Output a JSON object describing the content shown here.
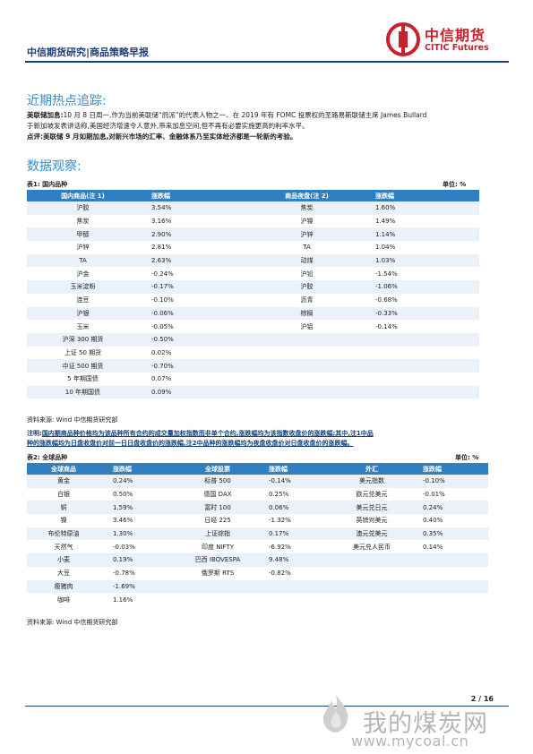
{
  "header": {
    "title": "中信期货研究|商品策略早报",
    "brand_cn": "中信期货",
    "brand_en": "CITIC Futures"
  },
  "section1": {
    "title": "近期热点追踪:",
    "news_label": "美联储加息:",
    "news_text": "10 月 8 日周一,作为当前美联储“鸽派”的代表人物之一、在 2019 年有 FOMC 投票权的圣路易斯联储主席 James Bullard",
    "news_text2": "于新加坡发表讲话称,美国经济增速令人意外,带来加息空间,但不再有必要实施更高的利率水平。",
    "comment_label": "点评:",
    "comment_text": "美联储 9 月如期加息,对新兴市场的汇率、金融体系乃至实体经济都是一轮新的考验。"
  },
  "section2": {
    "title": "数据观察:"
  },
  "table1": {
    "caption": "表1: 国内品种",
    "unit": "单位: %",
    "headers": [
      "国内商品(注 1)",
      "涨跌幅",
      "商品夜盘(注 2)",
      "涨跌幅"
    ],
    "rows": [
      [
        "沪胶",
        "3.54%",
        "焦炭",
        "1.60%"
      ],
      [
        "焦炭",
        "3.16%",
        "沪镍",
        "1.49%"
      ],
      [
        "甲醇",
        "2.90%",
        "沪锌",
        "1.14%"
      ],
      [
        "沪锌",
        "2.81%",
        "TA",
        "1.04%"
      ],
      [
        "TA",
        "2.63%",
        "动煤",
        "1.03%"
      ],
      [
        "沪金",
        "-0.24%",
        "沪铅",
        "-1.54%"
      ],
      [
        "玉米淀粉",
        "-0.17%",
        "沪胶",
        "-1.06%"
      ],
      [
        "连豆",
        "-0.10%",
        "沥青",
        "-0.68%"
      ],
      [
        "沪银",
        "-0.06%",
        "棕榈",
        "-0.33%"
      ],
      [
        "玉米",
        "-0.05%",
        "沪铝",
        "-0.14%"
      ],
      [
        "沪深 300 期货",
        "-0.50%",
        "",
        ""
      ],
      [
        "上证 50 期货",
        "0.02%",
        "",
        ""
      ],
      [
        "中证 500 期货",
        "-0.70%",
        "",
        ""
      ],
      [
        "5 年期国债",
        "0.07%",
        "",
        ""
      ],
      [
        "10 年期国债",
        "0.09%",
        "",
        ""
      ]
    ],
    "source": "资料来源: Wind 中信期货研究部"
  },
  "note": {
    "label": "注明:",
    "text": "国内期商品种价格均为该品种所有合约的成交量加权指数而非单个合约,涨跌幅均为该指数收盘价的涨跌幅;其中,注1中品",
    "text2": "种的涨跌幅均为日盘收盘价对前一日日盘收盘价的涨跌幅,注2中品种的涨跌幅均为夜盘收盘价对日盘收盘价的涨跌幅。"
  },
  "table2": {
    "caption": "表2: 全球品种",
    "unit": "单位: %",
    "headers": [
      "全球商品",
      "涨跌幅",
      "全球股票",
      "涨跌幅",
      "外汇",
      "涨跌幅"
    ],
    "rows": [
      [
        "黄金",
        "0.24%",
        "标普 500",
        "-0.14%",
        "美元指数",
        "-0.10%"
      ],
      [
        "白银",
        "0.50%",
        "德国 DAX",
        "0.25%",
        "欧元兑美元",
        "-0.01%"
      ],
      [
        "铜",
        "1.59%",
        "富时 100",
        "0.06%",
        "美元兑日元",
        "0.24%"
      ],
      [
        "镍",
        "3.46%",
        "日经 225",
        "-1.32%",
        "英镑对美元",
        "0.40%"
      ],
      [
        "布伦特原油",
        "1.30%",
        "上证综指",
        "0.17%",
        "澳元兑美元",
        "0.35%"
      ],
      [
        "天然气",
        "-0.03%",
        "印度 NIFTY",
        "-6.92%",
        "美元兑人民币",
        "0.14%"
      ],
      [
        "小麦",
        "0.19%",
        "巴西 IBOVESPA",
        "9.48%",
        "",
        ""
      ],
      [
        "大豆",
        "-0.78%",
        "俄罗斯 RTS",
        "-0.82%",
        "",
        ""
      ],
      [
        "瘦猪肉",
        "-1.69%",
        "",
        "",
        "",
        ""
      ],
      [
        "咖啡",
        "1.16%",
        "",
        "",
        "",
        ""
      ]
    ],
    "source": "资料来源: Wind 中信期货研究部"
  },
  "footer": {
    "page": "2 / 16",
    "watermark_cn": "我的煤炭网",
    "watermark_url": "www.mycoal.cn"
  },
  "colors": {
    "brand_red": "#c8202c",
    "header_blue": "#1f3f7a",
    "accent_blue": "#2f7fc3",
    "title_blue": "#2f8fd0"
  }
}
